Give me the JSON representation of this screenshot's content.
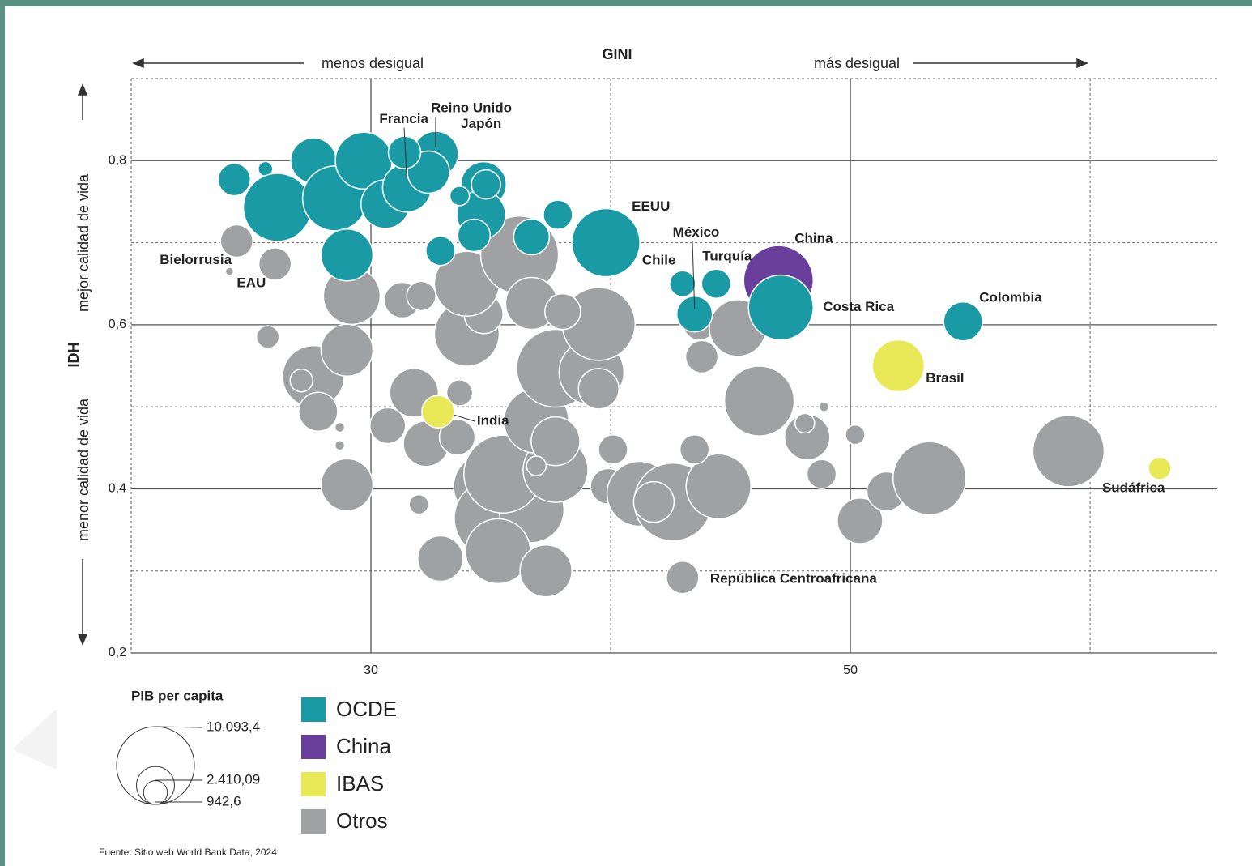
{
  "chart_data": {
    "type": "bubble",
    "title": "GINI",
    "x_left_note": "menos desigual",
    "x_right_note": "más desigual",
    "y_label": "IDH",
    "y_top_note": "mejor calidad de vida",
    "y_bottom_note": "menor calidad de vida",
    "xlim": [
      20,
      65.3
    ],
    "xticks": [
      30,
      50
    ],
    "x_minor_grid": [
      40,
      60
    ],
    "ylim": [
      0.2,
      0.9
    ],
    "yticks": [
      {
        "value": 0.2,
        "label": "0,2"
      },
      {
        "value": 0.4,
        "label": "0,4"
      },
      {
        "value": 0.6,
        "label": "0,6"
      },
      {
        "value": 0.8,
        "label": "0,8"
      }
    ],
    "y_minor_grid": [
      0.3,
      0.5,
      0.7,
      0.9
    ],
    "grid": true,
    "series": [
      {
        "name": "OCDE",
        "color": "#1a9aa5",
        "x": [
          24.3,
          25.6,
          26.1,
          27.6,
          28.5,
          29.7,
          29.0,
          30.6,
          31.5,
          32.7,
          32.4,
          34.7,
          34.6,
          33.7,
          34.3,
          32.9,
          36.7,
          37.8,
          39.8,
          43.0,
          43.5,
          44.4,
          47.1,
          54.7,
          34.8,
          31.4
        ],
        "values": [
          0.777,
          0.79,
          0.743,
          0.8,
          0.754,
          0.8,
          0.685,
          0.747,
          0.767,
          0.808,
          0.786,
          0.771,
          0.734,
          0.757,
          0.709,
          0.69,
          0.707,
          0.734,
          0.7,
          0.65,
          0.613,
          0.65,
          0.621,
          0.604,
          0.771,
          0.81
        ],
        "sizes": [
          1752,
          355,
          7726,
          3434,
          7008,
          5366,
          4485,
          3942,
          3942,
          3434,
          2961,
          3434,
          3942,
          631,
          1752,
          1419,
          2120,
          1419,
          7726,
          1121,
          2120,
          1419,
          7008,
          2523,
          1419,
          1752
        ],
        "labels": [
          null,
          null,
          null,
          null,
          null,
          null,
          null,
          null,
          "Francia",
          "Reino Unido",
          null,
          "Japón",
          null,
          null,
          null,
          null,
          null,
          null,
          "EEUU",
          "Chile",
          "México",
          "Turquía",
          "Costa Rica",
          "Colombia",
          null,
          null
        ]
      },
      {
        "name": "China",
        "color": "#6a3f9b",
        "x": [
          47.0
        ],
        "values": [
          0.654
        ],
        "sizes": [
          8099
        ],
        "labels": [
          "China"
        ]
      },
      {
        "name": "IBAS",
        "color": "#e9e957",
        "x": [
          32.8,
          52.0,
          62.9
        ],
        "values": [
          0.494,
          0.55,
          0.425
        ],
        "sizes": [
          1752,
          4485,
          858
        ],
        "labels": [
          "India",
          "Brasil",
          "Sudáfrica"
        ]
      },
      {
        "name": "Otros",
        "color": "#9fa1a2",
        "x": [
          24.4,
          24.1,
          43.0,
          26.0,
          25.7,
          29.2,
          27.6,
          27.8,
          29.0,
          27.1,
          29.0,
          30.7,
          31.3,
          31.8,
          32.3,
          33.6,
          33.7,
          32.1,
          34.0,
          34.7,
          34.0,
          36.2,
          36.7,
          34.8,
          35.1,
          36.7,
          35.3,
          32.9,
          37.3,
          35.5,
          37.7,
          36.9,
          37.7,
          36.9,
          37.7,
          39.2,
          39.5,
          38.0,
          39.5,
          40.1,
          39.9,
          41.2,
          42.6,
          41.8,
          44.5,
          43.5,
          43.8,
          43.7,
          45.3,
          46.2,
          48.2,
          48.1,
          48.8,
          48.9,
          50.2,
          50.4,
          51.5,
          53.3,
          59.1,
          32.0,
          28.7,
          28.7
        ],
        "values": [
          0.702,
          0.665,
          0.292,
          0.674,
          0.585,
          0.635,
          0.537,
          0.494,
          0.569,
          0.532,
          0.405,
          0.477,
          0.63,
          0.517,
          0.455,
          0.463,
          0.517,
          0.635,
          0.589,
          0.613,
          0.65,
          0.685,
          0.626,
          0.403,
          0.364,
          0.374,
          0.324,
          0.315,
          0.3,
          0.418,
          0.423,
          0.483,
          0.458,
          0.428,
          0.547,
          0.542,
          0.601,
          0.616,
          0.522,
          0.448,
          0.403,
          0.394,
          0.384,
          0.384,
          0.403,
          0.448,
          0.561,
          0.601,
          0.596,
          0.507,
          0.463,
          0.48,
          0.418,
          0.5,
          0.466,
          0.361,
          0.397,
          0.413,
          0.446,
          0.381,
          0.475,
          0.453
        ],
        "sizes": [
          1752,
          110,
          1752,
          1752,
          858,
          5366,
          6325,
          2523,
          4485,
          858,
          4485,
          2120,
          2120,
          3942,
          3434,
          2120,
          1121,
          1419,
          7008,
          2523,
          7008,
          10093,
          4485,
          7008,
          10093,
          7008,
          7008,
          3434,
          4485,
          10093,
          7008,
          7008,
          3942,
          631,
          10093,
          7008,
          8869,
          2120,
          2737,
          1419,
          2120,
          7008,
          10093,
          2737,
          7008,
          1419,
          1752,
          1752,
          5366,
          8099,
          3434,
          631,
          1419,
          158,
          631,
          3434,
          2523,
          8869,
          8480,
          631,
          158,
          158
        ],
        "labels": [
          "Bielorrusia",
          "EAU",
          "República Centroafricana",
          null,
          null,
          null,
          null,
          null,
          null,
          null,
          null,
          null,
          null,
          null,
          null,
          null,
          null,
          null,
          null,
          null,
          null,
          null,
          null,
          null,
          null,
          null,
          null,
          null,
          null,
          null,
          null,
          null,
          null,
          null,
          null,
          null,
          null,
          null,
          null,
          null,
          null,
          null,
          null,
          null,
          null,
          null,
          null,
          null,
          null,
          null,
          null,
          null,
          null,
          null,
          null,
          null,
          null,
          null,
          null,
          null,
          null,
          null
        ]
      }
    ],
    "size_legend": {
      "title": "PIB per capita",
      "values": [
        10093.4,
        2410.09,
        942.6
      ],
      "value_labels": [
        "10.093,4",
        "2.410,09",
        "942,6"
      ]
    },
    "source": "Fuente: Sitio web World Bank Data, 2024"
  }
}
